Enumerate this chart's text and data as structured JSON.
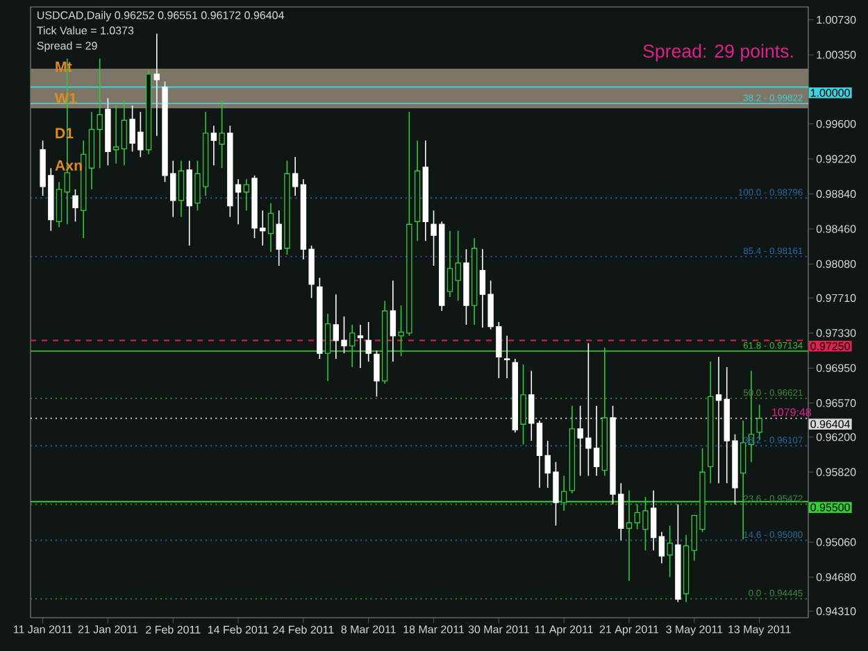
{
  "chart_data": {
    "type": "candlestick",
    "title": "USDCAD,Daily 0.96252 0.96551 0.96172 0.96404",
    "categories": [
      "11 Jan 2011",
      null,
      null,
      null,
      null,
      null,
      null,
      null,
      "21 Jan 2011",
      null,
      null,
      null,
      null,
      null,
      null,
      null,
      "2 Feb 2011",
      null,
      null,
      null,
      null,
      null,
      null,
      null,
      "14 Feb 2011",
      null,
      null,
      null,
      null,
      null,
      null,
      null,
      "24 Feb 2011",
      null,
      null,
      null,
      null,
      null,
      null,
      null,
      "8 Mar 2011",
      null,
      null,
      null,
      null,
      null,
      null,
      null,
      "18 Mar 2011",
      null,
      null,
      null,
      null,
      null,
      null,
      null,
      "30 Mar 2011",
      null,
      null,
      null,
      null,
      null,
      null,
      null,
      "11 Apr 2011",
      null,
      null,
      null,
      null,
      null,
      null,
      null,
      "21 Apr 2011",
      null,
      null,
      null,
      null,
      null,
      null,
      null,
      "3 May 2011",
      null,
      null,
      null,
      null,
      null,
      null,
      null,
      "13 May 2011"
    ],
    "ohlc": [
      [
        0.9932,
        0.9942,
        0.9882,
        0.9892
      ],
      [
        0.9904,
        0.9912,
        0.9844,
        0.9856
      ],
      [
        0.9854,
        0.9897,
        0.9848,
        0.9889
      ],
      [
        0.9886,
        1.0031,
        0.9851,
        0.9907
      ],
      [
        0.9882,
        0.9889,
        0.9854,
        0.9869
      ],
      [
        0.9866,
        0.9942,
        0.9836,
        0.9927
      ],
      [
        0.9912,
        0.9973,
        0.9889,
        0.9954
      ],
      [
        0.9954,
        1.0031,
        0.9912,
        0.997
      ],
      [
        0.9976,
        0.9988,
        0.9915,
        0.993
      ],
      [
        0.9932,
        0.998,
        0.9917,
        0.9935
      ],
      [
        0.9933,
        0.9985,
        0.9915,
        0.9964
      ],
      [
        0.9965,
        0.998,
        0.993,
        0.9939
      ],
      [
        0.9951,
        0.9973,
        0.9924,
        0.9932
      ],
      [
        0.9932,
        1.0018,
        0.9927,
        1.0014
      ],
      [
        1.0014,
        1.0058,
        0.9947,
        1.0008
      ],
      [
        1.0,
        1.0006,
        0.9897,
        0.9904
      ],
      [
        0.9906,
        0.992,
        0.9859,
        0.9877
      ],
      [
        0.9877,
        0.992,
        0.9859,
        0.9909
      ],
      [
        0.991,
        0.992,
        0.9828,
        0.9871
      ],
      [
        0.9874,
        0.992,
        0.9866,
        0.9906
      ],
      [
        0.9892,
        0.9973,
        0.9882,
        0.995
      ],
      [
        0.995,
        0.9958,
        0.9915,
        0.9942
      ],
      [
        0.9938,
        0.9985,
        0.9912,
        0.995
      ],
      [
        0.995,
        0.9958,
        0.9859,
        0.9871
      ],
      [
        0.9894,
        0.99,
        0.9851,
        0.9886
      ],
      [
        0.9886,
        0.99,
        0.9866,
        0.9894
      ],
      [
        0.9901,
        0.9904,
        0.9836,
        0.9847
      ],
      [
        0.9847,
        0.9866,
        0.9828,
        0.9844
      ],
      [
        0.9841,
        0.9874,
        0.9821,
        0.9863
      ],
      [
        0.9851,
        0.9866,
        0.9806,
        0.9824
      ],
      [
        0.9825,
        0.992,
        0.9818,
        0.9906
      ],
      [
        0.9906,
        0.9924,
        0.9882,
        0.9892
      ],
      [
        0.9894,
        0.99,
        0.9813,
        0.9824
      ],
      [
        0.9824,
        0.9828,
        0.9771,
        0.9786
      ],
      [
        0.9783,
        0.9793,
        0.9705,
        0.9711
      ],
      [
        0.9711,
        0.9754,
        0.9681,
        0.9743
      ],
      [
        0.9742,
        0.9775,
        0.9705,
        0.9725
      ],
      [
        0.9725,
        0.9751,
        0.9711,
        0.9719
      ],
      [
        0.9719,
        0.9742,
        0.9696,
        0.9733
      ],
      [
        0.973,
        0.9742,
        0.9695,
        0.9728
      ],
      [
        0.9725,
        0.9745,
        0.9702,
        0.9711
      ],
      [
        0.971,
        0.9714,
        0.9664,
        0.9681
      ],
      [
        0.9681,
        0.9768,
        0.9678,
        0.9757
      ],
      [
        0.9757,
        0.979,
        0.9702,
        0.973
      ],
      [
        0.973,
        0.9763,
        0.9708,
        0.9734
      ],
      [
        0.9733,
        0.9973,
        0.973,
        0.9851
      ],
      [
        0.9854,
        0.9942,
        0.9833,
        0.9909
      ],
      [
        0.9913,
        0.9942,
        0.9833,
        0.9854
      ],
      [
        0.9851,
        0.9866,
        0.9806,
        0.9839
      ],
      [
        0.9851,
        0.9854,
        0.9757,
        0.9763
      ],
      [
        0.9778,
        0.9844,
        0.9772,
        0.9803
      ],
      [
        0.979,
        0.9844,
        0.9768,
        0.9809
      ],
      [
        0.9809,
        0.9824,
        0.9742,
        0.9763
      ],
      [
        0.9763,
        0.9836,
        0.9742,
        0.9825
      ],
      [
        0.9801,
        0.9824,
        0.9739,
        0.9775
      ],
      [
        0.9775,
        0.979,
        0.9737,
        0.974
      ],
      [
        0.974,
        0.9745,
        0.9684,
        0.9707
      ],
      [
        0.9705,
        0.973,
        0.9684,
        0.9704
      ],
      [
        0.9701,
        0.9705,
        0.9625,
        0.9628
      ],
      [
        0.9634,
        0.9699,
        0.9612,
        0.9666
      ],
      [
        0.9666,
        0.9692,
        0.9616,
        0.9635
      ],
      [
        0.9635,
        0.9638,
        0.9565,
        0.96
      ],
      [
        0.96,
        0.9616,
        0.9565,
        0.9581
      ],
      [
        0.9582,
        0.9593,
        0.9524,
        0.9549
      ],
      [
        0.9549,
        0.9578,
        0.954,
        0.9561
      ],
      [
        0.9562,
        0.9654,
        0.9559,
        0.9629
      ],
      [
        0.9629,
        0.9654,
        0.9578,
        0.9619
      ],
      [
        0.9619,
        0.9722,
        0.9578,
        0.9608
      ],
      [
        0.9608,
        0.9654,
        0.9578,
        0.9588
      ],
      [
        0.9584,
        0.9717,
        0.9578,
        0.9641
      ],
      [
        0.9641,
        0.9654,
        0.9547,
        0.9558
      ],
      [
        0.9558,
        0.957,
        0.9508,
        0.9521
      ],
      [
        0.9521,
        0.9562,
        0.9464,
        0.9527
      ],
      [
        0.9527,
        0.9547,
        0.952,
        0.9538
      ],
      [
        0.952,
        0.9555,
        0.9497,
        0.954
      ],
      [
        0.9543,
        0.9562,
        0.9497,
        0.9511
      ],
      [
        0.9512,
        0.9517,
        0.9483,
        0.9491
      ],
      [
        0.9492,
        0.9524,
        0.9468,
        0.9505
      ],
      [
        0.9503,
        0.9547,
        0.9441,
        0.9444
      ],
      [
        0.945,
        0.9514,
        0.9441,
        0.9502
      ],
      [
        0.9497,
        0.9535,
        0.9486,
        0.9535
      ],
      [
        0.952,
        0.9608,
        0.9517,
        0.9582
      ],
      [
        0.9588,
        0.9702,
        0.957,
        0.9664
      ],
      [
        0.9666,
        0.9707,
        0.957,
        0.966
      ],
      [
        0.9661,
        0.9696,
        0.957,
        0.9616
      ],
      [
        0.9616,
        0.9623,
        0.9547,
        0.9565
      ],
      [
        0.9581,
        0.9638,
        0.9509,
        0.9614
      ],
      [
        0.9612,
        0.9692,
        0.9593,
        0.9623
      ],
      [
        0.96252,
        0.96551,
        0.96172,
        0.96404
      ]
    ],
    "ylim": [
      0.9424,
      1.0087
    ],
    "yticks": [
      {
        "value": 1.0073,
        "label": "1.00730"
      },
      {
        "value": 1.0035,
        "label": "1.00350"
      },
      {
        "value": 0.996,
        "label": "0.99600"
      },
      {
        "value": 0.9922,
        "label": "0.99220"
      },
      {
        "value": 0.9884,
        "label": "0.98840"
      },
      {
        "value": 0.9846,
        "label": "0.98460"
      },
      {
        "value": 0.9808,
        "label": "0.98080"
      },
      {
        "value": 0.9771,
        "label": "0.97710"
      },
      {
        "value": 0.9733,
        "label": "0.97330"
      },
      {
        "value": 0.9695,
        "label": "0.96950"
      },
      {
        "value": 0.9657,
        "label": "0.96570"
      },
      {
        "value": 0.962,
        "label": "0.96200"
      },
      {
        "value": 0.9582,
        "label": "0.95820"
      },
      {
        "value": 0.9506,
        "label": "0.95060"
      },
      {
        "value": 0.9468,
        "label": "0.94680"
      },
      {
        "value": 0.9431,
        "label": "0.94310"
      }
    ],
    "bands": [
      {
        "axis": "y",
        "from": 0.9977,
        "to": 1.002,
        "color": "#7d7566"
      }
    ],
    "ref_lines": [
      {
        "axis": "y",
        "value": 1.0,
        "label": "1.00000",
        "color": "#40d0e0",
        "line_style": "solid"
      },
      {
        "axis": "y",
        "value": 0.99822,
        "color": "#40d0e0",
        "line_style": "solid"
      },
      {
        "axis": "y",
        "value": 0.98796,
        "color": "#2868a8",
        "line_style": "dotted"
      },
      {
        "axis": "y",
        "value": 0.98161,
        "color": "#2868a8",
        "line_style": "dotted"
      },
      {
        "axis": "y",
        "value": 0.9725,
        "label": "0.97250",
        "color": "#e02050",
        "line_style": "dashed"
      },
      {
        "axis": "y",
        "value": 0.97134,
        "color": "#30c030",
        "line_style": "solid"
      },
      {
        "axis": "y",
        "value": 0.96621,
        "color": "#3c8a3c",
        "line_style": "dotted"
      },
      {
        "axis": "y",
        "value": 0.96404,
        "label": "0.96404",
        "color": "#d8d8d8",
        "line_style": "dotted"
      },
      {
        "axis": "y",
        "value": 0.96107,
        "color": "#2868a8",
        "line_style": "dotted"
      },
      {
        "axis": "y",
        "value": 0.955,
        "label": "0.95500",
        "color": "#30d030",
        "line_style": "solid"
      },
      {
        "axis": "y",
        "value": 0.95472,
        "color": "#3c8a3c",
        "line_style": "dotted"
      },
      {
        "axis": "y",
        "value": 0.9508,
        "color": "#2868a8",
        "line_style": "dotted"
      },
      {
        "axis": "y",
        "value": 0.94445,
        "color": "#3c8a3c",
        "line_style": "dotted"
      }
    ],
    "annotations": [
      "Tick Value = 1.0373",
      "Spread = 29",
      "Spread: 29 points.",
      {
        "text": "Mt",
        "y": 1.0022
      },
      {
        "text": "W1",
        "y": 0.9988
      },
      {
        "text": "D1",
        "y": 0.995
      },
      {
        "text": "Axn",
        "y": 0.9915
      },
      "1079:48",
      {
        "text": "38.2 - 0.99822",
        "y": 0.99822
      },
      {
        "text": "100.0 - 0.98796",
        "y": 0.98796
      },
      {
        "text": "85.4 - 0.98161",
        "y": 0.98161
      },
      {
        "text": "61.8 - 0.97134",
        "y": 0.97134
      },
      {
        "text": "50.0 - 0.96621",
        "y": 0.96621
      },
      {
        "text": "38.2 - 0.96107",
        "y": 0.96107
      },
      {
        "text": "23.6 - 0.95472",
        "y": 0.95472
      },
      {
        "text": "14.6 - 0.95080",
        "y": 0.9508
      },
      {
        "text": "0.0 - 0.94445",
        "y": 0.94445
      }
    ]
  }
}
